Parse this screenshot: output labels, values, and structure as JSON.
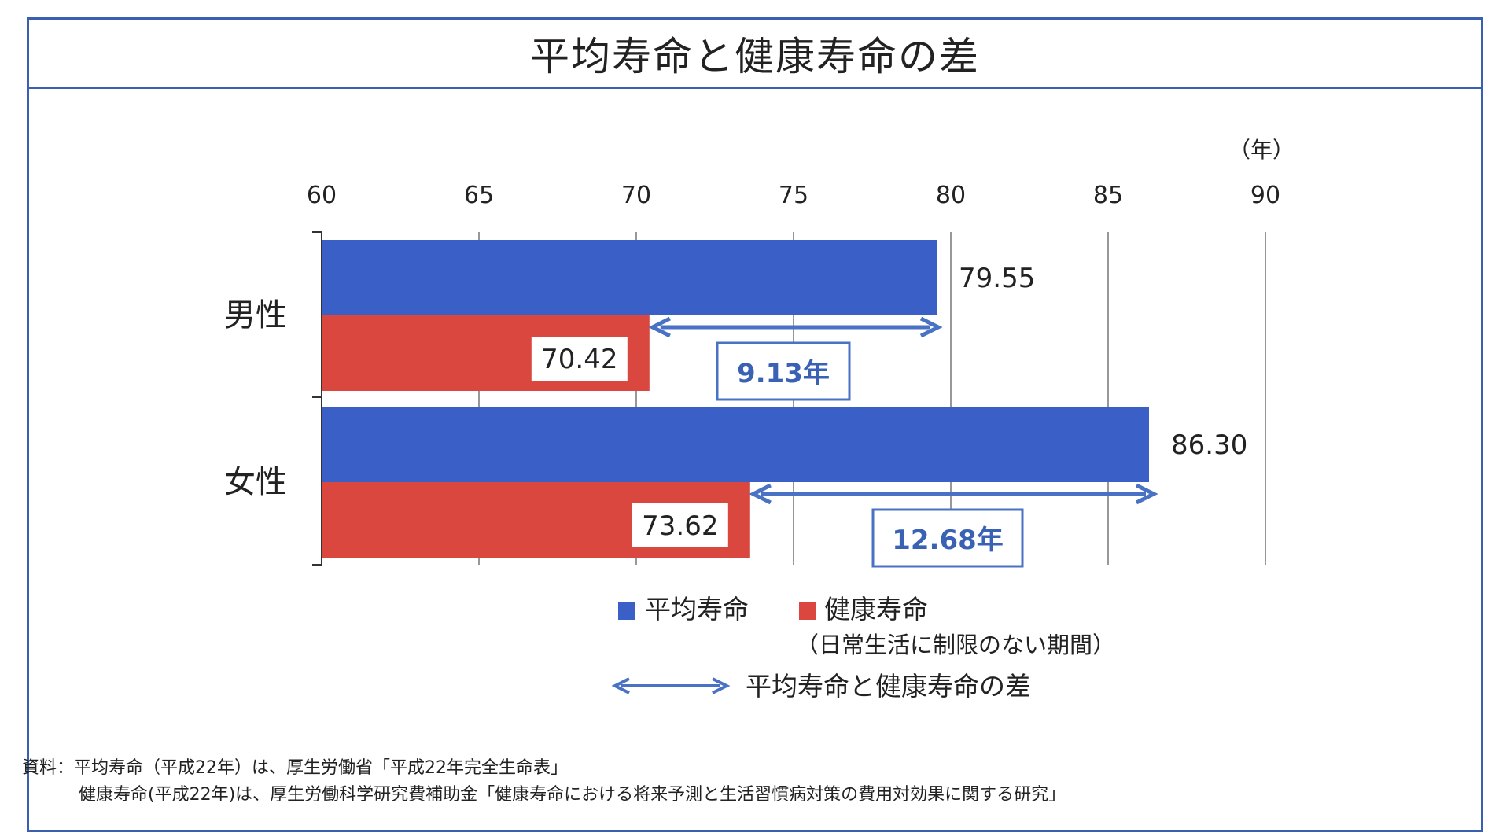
{
  "title": "平均寿命と健康寿命の差",
  "chart_data": {
    "type": "bar",
    "orientation": "horizontal",
    "unit": "（年）",
    "categories": [
      "男性",
      "女性"
    ],
    "series": [
      {
        "name": "平均寿命",
        "color": "#3a5fc6",
        "values": [
          79.55,
          86.3
        ]
      },
      {
        "name": "健康寿命",
        "color": "#d9473f",
        "values": [
          70.42,
          73.62
        ]
      }
    ],
    "value_labels": {
      "avg": [
        "79.55",
        "86.30"
      ],
      "healthy": [
        "70.42",
        "73.62"
      ]
    },
    "differences": [
      {
        "category": "男性",
        "value": 9.13,
        "label": "9.13年"
      },
      {
        "category": "女性",
        "value": 12.68,
        "label": "12.68年"
      }
    ],
    "x_ticks": [
      "60",
      "65",
      "70",
      "75",
      "80",
      "85",
      "90"
    ],
    "xlim": [
      60,
      90
    ],
    "grid": true,
    "legend": {
      "position": "bottom",
      "items": [
        "平均寿命",
        "健康寿命"
      ],
      "healthy_note": "（日常生活に制限のない期間）",
      "arrow_label": "平均寿命と健康寿命の差"
    },
    "arrow_color": "#4a72c4"
  },
  "notes": {
    "line1": "資料：平均寿命（平成22年）は、厚生労働省「平成22年完全生命表」",
    "line2": "健康寿命(平成22年)は、厚生労働科学研究費補助金「健康寿命における将来予測と生活習慣病対策の費用対効果に関する研究」"
  }
}
